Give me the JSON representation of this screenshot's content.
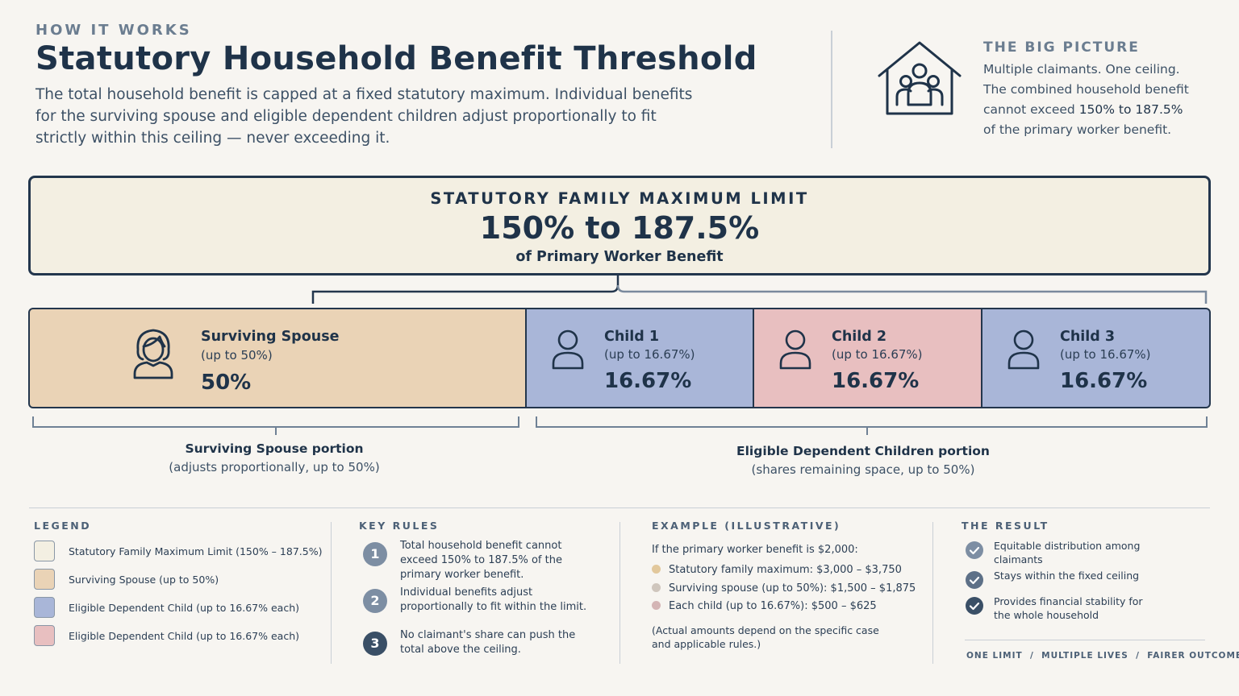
{
  "header": {
    "eyebrow": "HOW IT WORKS",
    "title": "Statutory Household Benefit Threshold",
    "lede": "The total household benefit is capped at a fixed statutory maximum. Individual benefits for the surviving spouse and eligible dependent children adjust proportionally to fit strictly within this ceiling — never exceeding it."
  },
  "big_picture": {
    "title": "THE BIG PICTURE",
    "line1": "Multiple claimants. One ceiling.",
    "line2": "The combined household benefit",
    "line3_pre": "cannot exceed ",
    "line3_value": "150% to 187.5%",
    "line4": "of the primary worker benefit.",
    "icon": "house-family-icon"
  },
  "limit": {
    "label": "STATUTORY FAMILY MAXIMUM LIMIT",
    "value": "150% to 187.5%",
    "sub": "of Primary Worker Benefit"
  },
  "claimants": [
    {
      "name": "Surviving Spouse",
      "cap": "(up to 50%)",
      "pct": "50%",
      "color": "#ead3b6",
      "icon": "spouse-icon"
    },
    {
      "name": "Child 1",
      "cap": "(up to 16.67%)",
      "pct": "16.67%",
      "color": "#a9b6d8",
      "icon": "person-icon"
    },
    {
      "name": "Child 2",
      "cap": "(up to 16.67%)",
      "pct": "16.67%",
      "color": "#e8bfc0",
      "icon": "person-icon"
    },
    {
      "name": "Child 3",
      "cap": "(up to 16.67%)",
      "pct": "16.67%",
      "color": "#a9b6d8",
      "icon": "person-icon"
    }
  ],
  "portions": {
    "spouse_title": "Surviving Spouse portion",
    "spouse_sub": "(adjusts proportionally, up to 50%)",
    "children_title": "Eligible Dependent Children portion",
    "children_sub": "(shares remaining space, up to 50%)"
  },
  "legend": {
    "title": "LEGEND",
    "items": [
      {
        "label": "Statutory Family Maximum Limit (150% – 187.5%)",
        "color": "#f3efe2"
      },
      {
        "label": "Surviving Spouse (up to 50%)",
        "color": "#ead3b6"
      },
      {
        "label": "Eligible Dependent Child (up to 16.67% each)",
        "color": "#a9b6d8"
      },
      {
        "label": "Eligible Dependent Child (up to 16.67% each)",
        "color": "#e8bfc0"
      }
    ]
  },
  "key_rules": {
    "title": "KEY RULES",
    "items": [
      {
        "num": "1",
        "text": "Total household benefit cannot exceed 150% to 187.5% of the primary worker benefit.",
        "color": "#7d8ea3"
      },
      {
        "num": "2",
        "text": "Individual benefits adjust proportionally to fit within the limit.",
        "color": "#7d8ea3"
      },
      {
        "num": "3",
        "text": "No claimant's share can push the total above the ceiling.",
        "color": "#3a4f66"
      }
    ]
  },
  "example": {
    "title": "EXAMPLE (ILLUSTRATIVE)",
    "intro": "If the primary worker benefit is $2,000:",
    "lines": [
      {
        "text": "Statutory family maximum: $3,000 – $3,750",
        "color": "#e2c89c"
      },
      {
        "text": "Surviving spouse (up to 50%): $1,500 – $1,875",
        "color": "#cfc6bd"
      },
      {
        "text": "Each child (up to 16.67%): $500 – $625",
        "color": "#d4b5b5"
      }
    ],
    "note": "(Actual amounts depend on the specific case and applicable rules.)"
  },
  "result": {
    "title": "THE RESULT",
    "items": [
      {
        "text": "Equitable distribution among claimants",
        "color": "#7d8ea3"
      },
      {
        "text": "Stays within the fixed ceiling",
        "color": "#5d7087"
      },
      {
        "text": "Provides financial stability for the whole household",
        "color": "#3a4f66"
      }
    ],
    "tagline": "ONE LIMIT  /  MULTIPLE LIVES  /  FAIRER OUTCOMES"
  }
}
